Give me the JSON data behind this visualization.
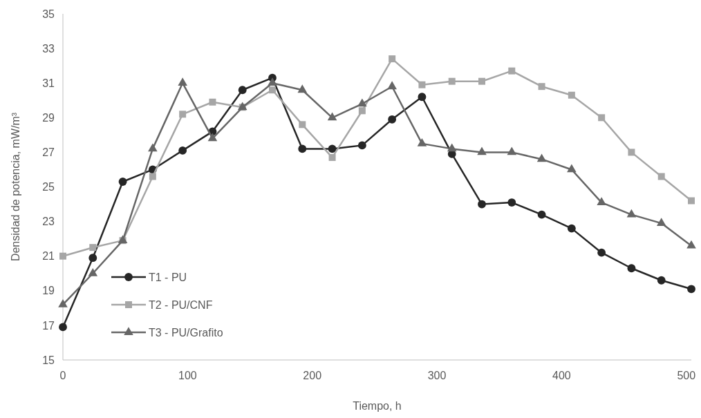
{
  "chart_data": {
    "type": "line",
    "xlabel": "Tiempo, h",
    "ylabel": "Densidad de potencia, mW/m³",
    "x": [
      0,
      24,
      48,
      72,
      96,
      120,
      144,
      168,
      192,
      216,
      240,
      264,
      288,
      312,
      336,
      360,
      384,
      408,
      432,
      456,
      480,
      504
    ],
    "xlim": [
      0,
      504
    ],
    "xticks": [
      0,
      100,
      200,
      300,
      400,
      500
    ],
    "ylim": [
      15,
      35
    ],
    "yticks": [
      15,
      17,
      19,
      21,
      23,
      25,
      27,
      29,
      31,
      33,
      35
    ],
    "grid": false,
    "legend": "bottom left",
    "line_style": "solid",
    "series": [
      {
        "name": "T1 - PU",
        "color": "#262626",
        "marker": "circle",
        "values": [
          16.9,
          20.9,
          25.3,
          26.0,
          27.1,
          28.2,
          30.6,
          31.3,
          27.2,
          27.2,
          27.4,
          28.9,
          30.2,
          26.9,
          24.0,
          24.1,
          23.4,
          22.6,
          21.2,
          20.3,
          19.6,
          19.1
        ]
      },
      {
        "name": "T2 - PU/CNF",
        "color": "#a6a6a6",
        "marker": "square",
        "values": [
          21.0,
          21.5,
          21.9,
          25.6,
          29.2,
          29.9,
          29.6,
          30.6,
          28.6,
          26.7,
          29.4,
          32.4,
          30.9,
          31.1,
          31.1,
          31.7,
          30.8,
          30.3,
          29.0,
          27.0,
          25.6,
          24.2
        ]
      },
      {
        "name": "T3 - PU/Grafito",
        "color": "#666666",
        "marker": "triangle",
        "values": [
          18.2,
          20.0,
          21.9,
          27.2,
          31.0,
          27.8,
          29.6,
          31.0,
          30.6,
          29.0,
          29.8,
          30.8,
          27.5,
          27.2,
          27.0,
          27.0,
          26.6,
          26.0,
          24.1,
          23.4,
          22.9,
          21.6
        ]
      }
    ]
  }
}
